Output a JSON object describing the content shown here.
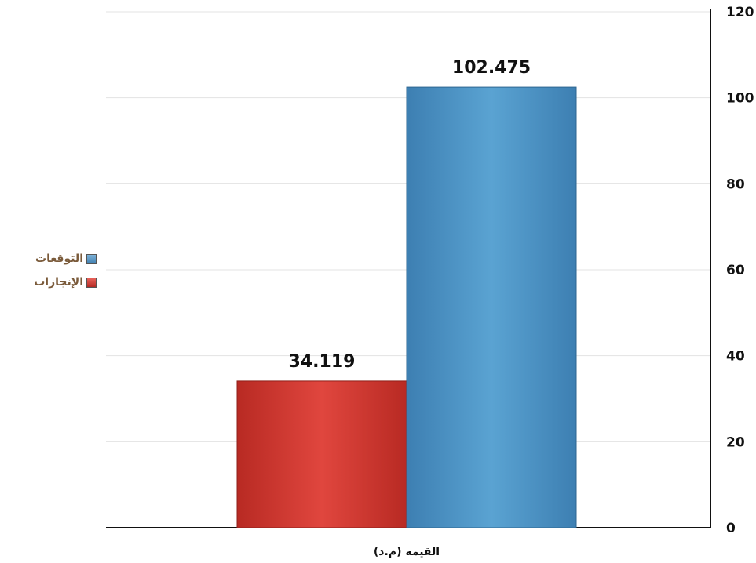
{
  "chart_data": {
    "type": "bar",
    "categories": [
      "القيمة (م.د)"
    ],
    "series": [
      {
        "name": "الإنجازات",
        "values": [
          34.119
        ],
        "color": "#d23a33"
      },
      {
        "name": "التوقعات",
        "values": [
          102.475
        ],
        "color": "#4f93c3"
      }
    ],
    "data_labels": [
      "34.119",
      "102.475"
    ],
    "y_ticks": [
      "0",
      "20",
      "40",
      "60",
      "80",
      "100",
      "120"
    ],
    "ylim": [
      0,
      120
    ],
    "y_axis_position": "right",
    "grid": true,
    "legend_position": "left"
  }
}
